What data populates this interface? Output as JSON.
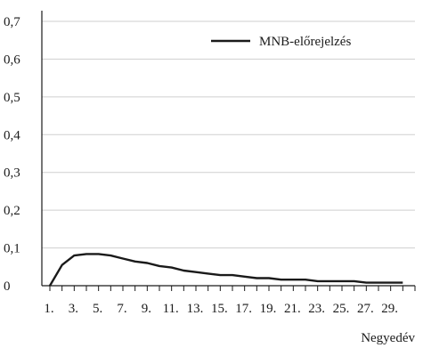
{
  "chart_data": {
    "type": "line",
    "xlabel": "Negyedév",
    "ylabel": "",
    "ylim": [
      0,
      0.7
    ],
    "y_ticks": [
      0,
      0.1,
      0.2,
      0.3,
      0.4,
      0.5,
      0.6,
      0.7
    ],
    "y_tick_labels": [
      "0",
      "0,1",
      "0,2",
      "0,3",
      "0,4",
      "0,5",
      "0,6",
      "0,7"
    ],
    "x": [
      1,
      2,
      3,
      4,
      5,
      6,
      7,
      8,
      9,
      10,
      11,
      12,
      13,
      14,
      15,
      16,
      17,
      18,
      19,
      20,
      21,
      22,
      23,
      24,
      25,
      26,
      27,
      28,
      29,
      30
    ],
    "x_tick_labels": [
      "1.",
      "3.",
      "5.",
      "7.",
      "9.",
      "11.",
      "13.",
      "15.",
      "17.",
      "19.",
      "21.",
      "23.",
      "25.",
      "27.",
      "29."
    ],
    "x_tick_label_values": [
      1,
      3,
      5,
      7,
      9,
      11,
      13,
      15,
      17,
      19,
      21,
      23,
      25,
      27,
      29
    ],
    "grid": "horizontal",
    "legend_position": "top-right",
    "series": [
      {
        "name": "MNB-előrejelzés",
        "color": "#1a1a1a",
        "values": [
          0.0,
          0.055,
          0.08,
          0.084,
          0.084,
          0.08,
          0.072,
          0.064,
          0.06,
          0.052,
          0.048,
          0.04,
          0.036,
          0.032,
          0.028,
          0.028,
          0.024,
          0.02,
          0.02,
          0.016,
          0.016,
          0.016,
          0.012,
          0.012,
          0.012,
          0.012,
          0.008,
          0.008,
          0.008,
          0.008
        ]
      }
    ]
  }
}
